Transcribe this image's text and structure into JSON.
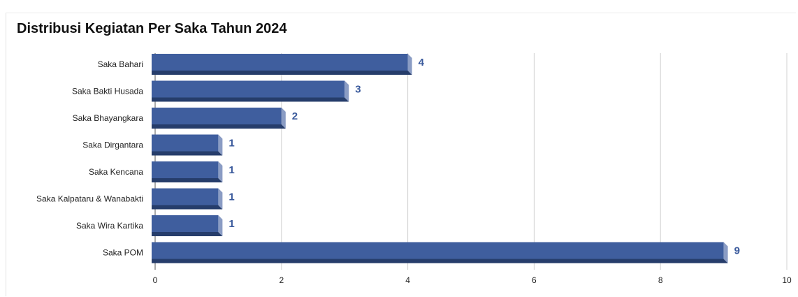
{
  "chart_data": {
    "type": "bar",
    "orientation": "horizontal",
    "title": "Distribusi Kegiatan Per Saka Tahun 2024",
    "categories": [
      "Saka Bahari",
      "Saka Bakti Husada",
      "Saka Bhayangkara",
      "Saka Dirgantara",
      "Saka Kencana",
      "Saka Kalpataru & Wanabakti",
      "Saka Wira Kartika",
      "Saka POM"
    ],
    "values": [
      4,
      3,
      2,
      1,
      1,
      1,
      1,
      9
    ],
    "xlim": [
      0,
      10
    ],
    "xticks": [
      0,
      2,
      4,
      6,
      8,
      10
    ],
    "grid": true,
    "colors": {
      "bar": "#3f5e9e",
      "bar_shadow": "#263d6b",
      "bar_side": "#8a9cc4",
      "data_label": "#3a5a9c",
      "grid": "#d0d0d0",
      "axis": "#555555"
    }
  }
}
